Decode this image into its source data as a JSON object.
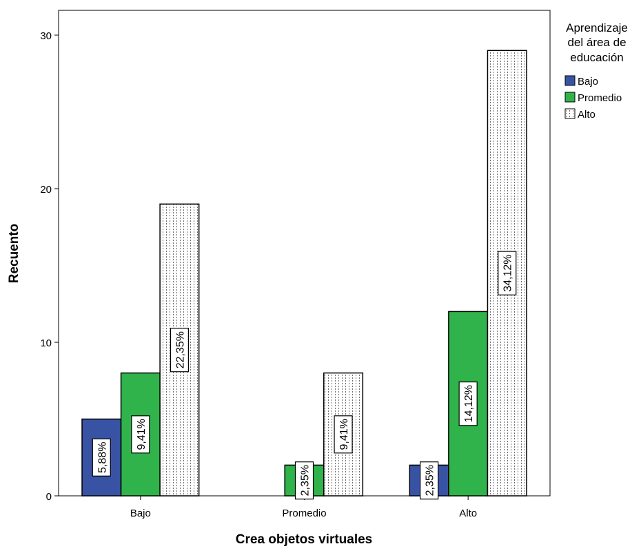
{
  "chart_data": {
    "type": "bar",
    "xlabel": "Crea objetos virtuales",
    "ylabel": "Recuento",
    "categories": [
      "Bajo",
      "Promedio",
      "Alto"
    ],
    "ylim": [
      0,
      30
    ],
    "yticks": [
      "0",
      "10",
      "20",
      "30"
    ],
    "legend": {
      "title": [
        "Aprendizaje",
        "del área de",
        "educación"
      ],
      "placement": "right"
    },
    "series": [
      {
        "name": "Bajo",
        "color": "#3953a4",
        "fill": "solid",
        "values": [
          5,
          0,
          2
        ],
        "labels": [
          "5,88%",
          "",
          "2,35%"
        ]
      },
      {
        "name": "Promedio",
        "color": "#2fb34a",
        "fill": "solid",
        "values": [
          8,
          2,
          12
        ],
        "labels": [
          "9,41%",
          "2,35%",
          "14,12%"
        ]
      },
      {
        "name": "Alto",
        "color": "#ffffff",
        "fill": "dotted",
        "values": [
          19,
          8,
          29
        ],
        "labels": [
          "22,35%",
          "9,41%",
          "34,12%"
        ]
      }
    ]
  }
}
